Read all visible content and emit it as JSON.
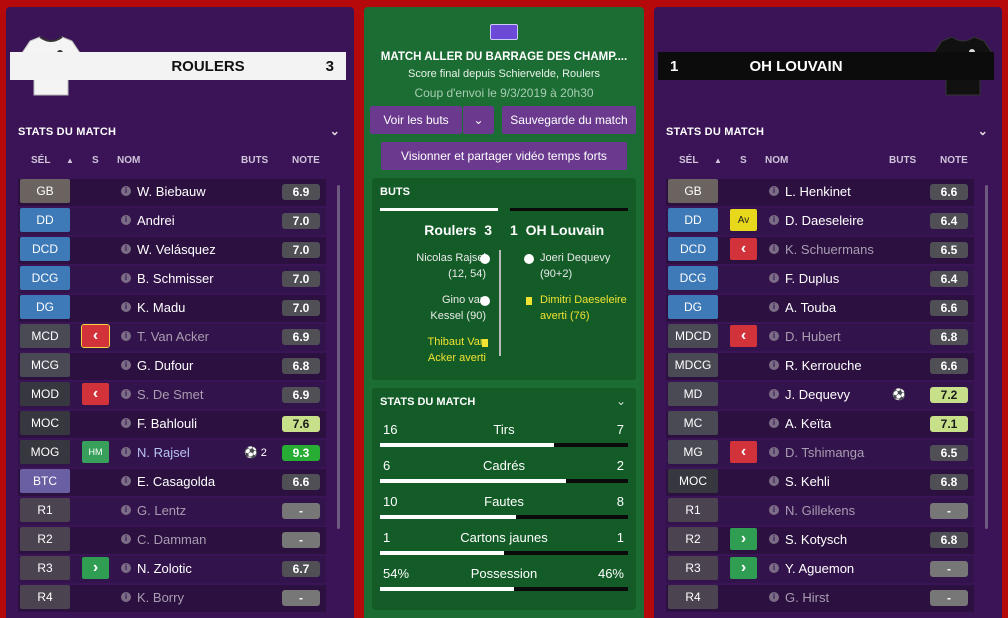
{
  "home": {
    "name": "ROULERS",
    "score": "3"
  },
  "away": {
    "name": "OH LOUVAIN",
    "score": "1"
  },
  "left": {
    "section": "STATS DU MATCH",
    "headers": {
      "sel": "SÉL",
      "s": "S",
      "nom": "NOM",
      "buts": "BUTS",
      "note": "NOTE"
    },
    "rows": [
      {
        "pos": "GB",
        "posColor": "#6b6360",
        "status": "",
        "name": "W. Biebauw",
        "dim": false,
        "buts": "",
        "note": "6.9",
        "noteType": ""
      },
      {
        "pos": "DD",
        "posColor": "#3e7ab7",
        "status": "",
        "name": "Andrei",
        "dim": false,
        "buts": "",
        "note": "7.0",
        "noteType": ""
      },
      {
        "pos": "DCD",
        "posColor": "#3e7ab7",
        "status": "",
        "name": "W. Velásquez",
        "dim": false,
        "buts": "",
        "note": "7.0",
        "noteType": ""
      },
      {
        "pos": "DCG",
        "posColor": "#3e7ab7",
        "status": "",
        "name": "B. Schmisser",
        "dim": false,
        "buts": "",
        "note": "7.0",
        "noteType": ""
      },
      {
        "pos": "DG",
        "posColor": "#3e7ab7",
        "status": "",
        "name": "K. Madu",
        "dim": false,
        "buts": "",
        "note": "7.0",
        "noteType": ""
      },
      {
        "pos": "MCD",
        "posColor": "#4a4a55",
        "status": "‹",
        "statusColor": "#d2323a",
        "name": "T. Van Acker",
        "dim": true,
        "buts": "",
        "note": "6.9",
        "noteType": ""
      },
      {
        "pos": "MCG",
        "posColor": "#4a4a55",
        "status": "",
        "name": "G. Dufour",
        "dim": false,
        "buts": "",
        "note": "6.8",
        "noteType": ""
      },
      {
        "pos": "MOD",
        "posColor": "#37373f",
        "status": "‹",
        "statusColor": "#d2323a",
        "name": "S. De Smet",
        "dim": true,
        "buts": "",
        "note": "6.9",
        "noteType": ""
      },
      {
        "pos": "MOC",
        "posColor": "#37373f",
        "status": "",
        "name": "F. Bahlouli",
        "dim": false,
        "buts": "",
        "note": "7.6",
        "noteType": "good"
      },
      {
        "pos": "MOG",
        "posColor": "#37373f",
        "status": "HM",
        "statusColor": "#39a05c",
        "name": "N. Rajsel",
        "dim": false,
        "hl": true,
        "buts": "⚽ 2",
        "note": "9.3",
        "noteType": "best"
      },
      {
        "pos": "BTC",
        "posColor": "#6b5fa4",
        "status": "",
        "name": "E. Casagolda",
        "dim": false,
        "buts": "",
        "note": "6.6",
        "noteType": ""
      },
      {
        "pos": "R1",
        "posColor": "#4b4350",
        "status": "",
        "name": "G. Lentz",
        "dim": true,
        "buts": "",
        "note": "-",
        "noteType": "dash"
      },
      {
        "pos": "R2",
        "posColor": "#4b4350",
        "status": "",
        "name": "C. Damman",
        "dim": true,
        "buts": "",
        "note": "-",
        "noteType": "dash"
      },
      {
        "pos": "R3",
        "posColor": "#4b4350",
        "status": "›",
        "statusColor": "#2f9e53",
        "name": "N. Zolotic",
        "dim": false,
        "buts": "",
        "note": "6.7",
        "noteType": ""
      },
      {
        "pos": "R4",
        "posColor": "#4b4350",
        "status": "",
        "name": "K. Borry",
        "dim": true,
        "buts": "",
        "note": "-",
        "noteType": "dash"
      }
    ]
  },
  "right": {
    "section": "STATS DU MATCH",
    "headers": {
      "sel": "SÉL",
      "s": "S",
      "nom": "NOM",
      "buts": "BUTS",
      "note": "NOTE"
    },
    "rows": [
      {
        "pos": "GB",
        "posColor": "#6b6360",
        "status": "",
        "name": "L. Henkinet",
        "dim": false,
        "buts": "",
        "note": "6.6",
        "noteType": ""
      },
      {
        "pos": "DD",
        "posColor": "#3e7ab7",
        "status": "Av",
        "statusColor": "#e8d81c",
        "name": "D. Daeseleire",
        "dim": false,
        "buts": "",
        "note": "6.4",
        "noteType": ""
      },
      {
        "pos": "DCD",
        "posColor": "#3e7ab7",
        "status": "‹",
        "statusColor": "#d2323a",
        "name": "K. Schuermans",
        "dim": true,
        "buts": "",
        "note": "6.5",
        "noteType": ""
      },
      {
        "pos": "DCG",
        "posColor": "#3e7ab7",
        "status": "",
        "name": "F. Duplus",
        "dim": false,
        "buts": "",
        "note": "6.4",
        "noteType": ""
      },
      {
        "pos": "DG",
        "posColor": "#3e7ab7",
        "status": "",
        "name": "A. Touba",
        "dim": false,
        "buts": "",
        "note": "6.6",
        "noteType": ""
      },
      {
        "pos": "MDCD",
        "posColor": "#4a4a55",
        "status": "‹",
        "statusColor": "#d2323a",
        "name": "D. Hubert",
        "dim": true,
        "buts": "",
        "note": "6.8",
        "noteType": ""
      },
      {
        "pos": "MDCG",
        "posColor": "#4a4a55",
        "status": "",
        "name": "R. Kerrouche",
        "dim": false,
        "buts": "",
        "note": "6.6",
        "noteType": ""
      },
      {
        "pos": "MD",
        "posColor": "#4a4a55",
        "status": "",
        "name": "J. Dequevy",
        "dim": false,
        "buts": "⚽",
        "note": "7.2",
        "noteType": "good"
      },
      {
        "pos": "MC",
        "posColor": "#4a4a55",
        "status": "",
        "name": "A. Keïta",
        "dim": false,
        "buts": "",
        "note": "7.1",
        "noteType": "good"
      },
      {
        "pos": "MG",
        "posColor": "#4a4a55",
        "status": "‹",
        "statusColor": "#d2323a",
        "name": "D. Tshimanga",
        "dim": true,
        "buts": "",
        "note": "6.5",
        "noteType": ""
      },
      {
        "pos": "MOC",
        "posColor": "#37373f",
        "status": "",
        "name": "S. Kehli",
        "dim": false,
        "buts": "",
        "note": "6.8",
        "noteType": ""
      },
      {
        "pos": "R1",
        "posColor": "#4b4350",
        "status": "",
        "name": "N. Gillekens",
        "dim": true,
        "buts": "",
        "note": "-",
        "noteType": "dash"
      },
      {
        "pos": "R2",
        "posColor": "#4b4350",
        "status": "›",
        "statusColor": "#2f9e53",
        "name": "S. Kotysch",
        "dim": false,
        "buts": "",
        "note": "6.8",
        "noteType": ""
      },
      {
        "pos": "R3",
        "posColor": "#4b4350",
        "status": "›",
        "statusColor": "#2f9e53",
        "name": "Y. Aguemon",
        "dim": false,
        "buts": "",
        "note": "-",
        "noteType": "dash"
      },
      {
        "pos": "R4",
        "posColor": "#4b4350",
        "status": "",
        "name": "G. Hirst",
        "dim": true,
        "buts": "",
        "note": "-",
        "noteType": "dash"
      }
    ]
  },
  "center": {
    "title": "MATCH ALLER DU BARRAGE DES CHAMP....",
    "subtitle": "Score final depuis Schiervelde, Roulers",
    "kickoff": "Coup d'envoi le 9/3/2019 à 20h30",
    "btn_goals": "Voir les buts",
    "btn_save": "Sauvegarde du match",
    "btn_video": "Visionner et partager vidéo temps forts",
    "goals": {
      "header": "BUTS",
      "home": "Roulers",
      "home_score": "3",
      "away_score": "1",
      "away": "OH Louvain",
      "home_events": [
        {
          "l1": "Nicolas Rajsel",
          "l2": "(12, 54)"
        },
        {
          "l1": "Gino van",
          "l2": "Kessel (90)"
        },
        {
          "l1": "Thibaut Van",
          "l2": "Acker averti"
        }
      ],
      "away_events": [
        {
          "l1": "Joeri Dequevy",
          "l2": "(90+2)"
        },
        {
          "l1": "Dimitri Daeseleire",
          "l2": "averti (76)"
        }
      ]
    },
    "stats": {
      "header": "STATS DU MATCH",
      "rows": [
        {
          "label": "Tirs",
          "home": "16",
          "away": "7",
          "share": 0.7
        },
        {
          "label": "Cadrés",
          "home": "6",
          "away": "2",
          "share": 0.75
        },
        {
          "label": "Fautes",
          "home": "10",
          "away": "8",
          "share": 0.55
        },
        {
          "label": "Cartons jaunes",
          "home": "1",
          "away": "1",
          "share": 0.5
        },
        {
          "label": "Possession",
          "home": "54%",
          "away": "46%",
          "share": 0.54
        }
      ]
    }
  }
}
